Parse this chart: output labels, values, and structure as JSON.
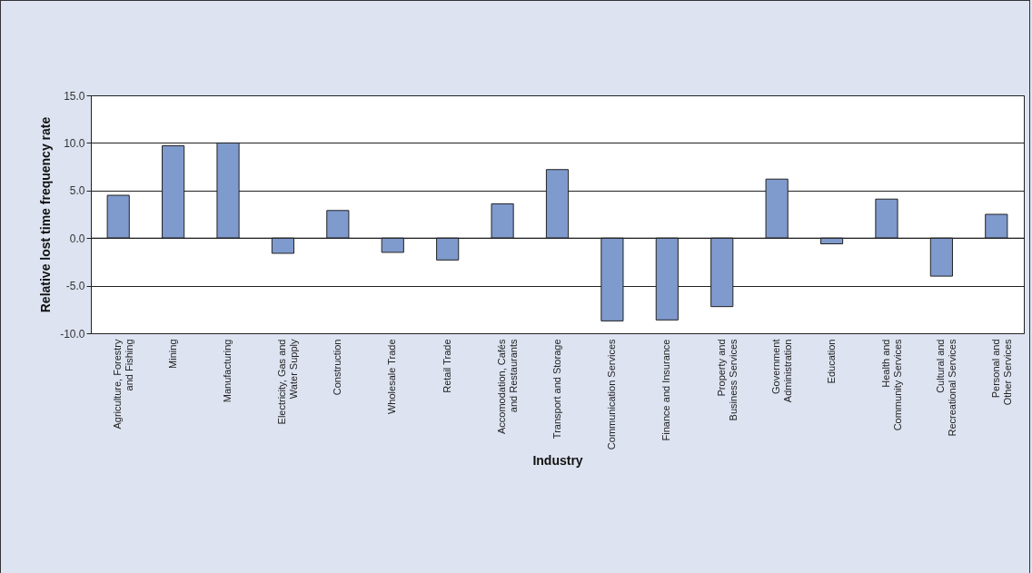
{
  "chart_data": {
    "type": "bar",
    "xlabel": "Industry",
    "ylabel": "Relative lost time frequency rate",
    "categories": [
      "Agriculture, Forestry\nand Fishing",
      "Mining",
      "Manufacturing",
      "Electricity, Gas and\nWater Supply",
      "Construction",
      "Wholesale Trade",
      "Retail Trade",
      "Accomodation, Cafés\nand Restaurants",
      "Transport and Storage",
      "Communication Services",
      "Finance and Insurance",
      "Property and\nBusiness Services",
      "Government\nAdministration",
      "Education",
      "Health and\nCommunity Services",
      "Cultural and\nRecreational Services",
      "Personal and\nOther Services"
    ],
    "values": [
      4.5,
      9.7,
      10.0,
      -1.6,
      2.9,
      -1.5,
      -2.3,
      3.6,
      7.2,
      -8.7,
      -8.6,
      -7.2,
      6.2,
      -0.6,
      4.1,
      -4.0,
      2.5
    ],
    "color": "#7f9acd",
    "ylim": [
      -10,
      15
    ],
    "yticks": [
      {
        "value": -10,
        "label": "-10.0"
      },
      {
        "value": -5,
        "label": "-5.0"
      },
      {
        "value": 0,
        "label": "0.0"
      },
      {
        "value": 5,
        "label": "5.0"
      },
      {
        "value": 10,
        "label": "10.0"
      },
      {
        "value": 15,
        "label": "15.0"
      }
    ],
    "grid": "y"
  }
}
